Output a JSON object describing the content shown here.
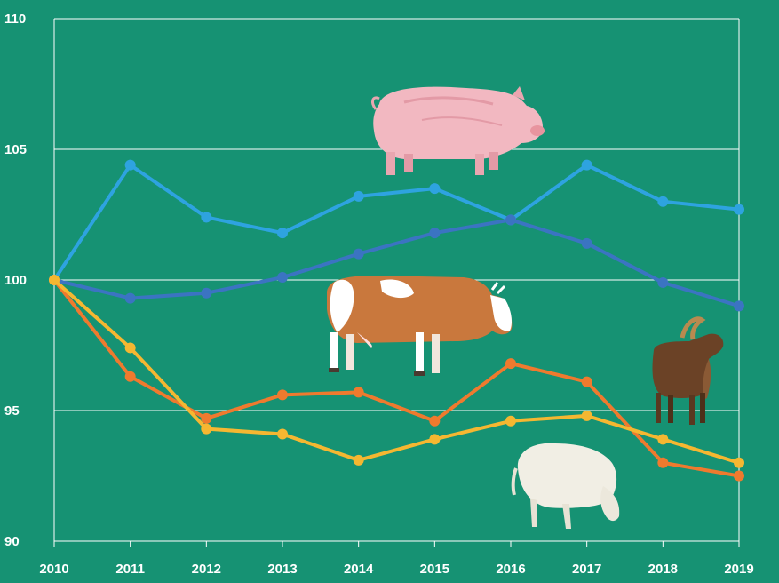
{
  "background_color": "#169273",
  "chart_data": {
    "type": "line",
    "title": "",
    "xlabel": "",
    "ylabel": "",
    "categories": [
      "2010",
      "2011",
      "2012",
      "2013",
      "2014",
      "2015",
      "2016",
      "2017",
      "2018",
      "2019"
    ],
    "ylim": [
      90,
      110
    ],
    "yticks": [
      90,
      95,
      100,
      105,
      110
    ],
    "grid": true,
    "legend": "none",
    "series": [
      {
        "color": "#2ea3e0",
        "icon": "pig-icon",
        "values": [
          100,
          104.4,
          102.4,
          101.8,
          103.2,
          103.5,
          102.3,
          104.4,
          103.0,
          102.7
        ]
      },
      {
        "color": "#3b74c2",
        "icon": "cow-icon",
        "values": [
          100,
          99.3,
          99.5,
          100.1,
          101.0,
          101.8,
          102.3,
          101.4,
          99.9,
          99.0
        ]
      },
      {
        "color": "#ef7a2e",
        "icon": "goat-icon",
        "values": [
          100,
          96.3,
          94.7,
          95.6,
          95.7,
          94.6,
          96.8,
          96.1,
          93.0,
          92.5
        ]
      },
      {
        "color": "#f5b731",
        "icon": "sheep-icon",
        "values": [
          100,
          97.4,
          94.3,
          94.1,
          93.1,
          93.9,
          94.6,
          94.8,
          93.9,
          93.0
        ]
      }
    ]
  }
}
